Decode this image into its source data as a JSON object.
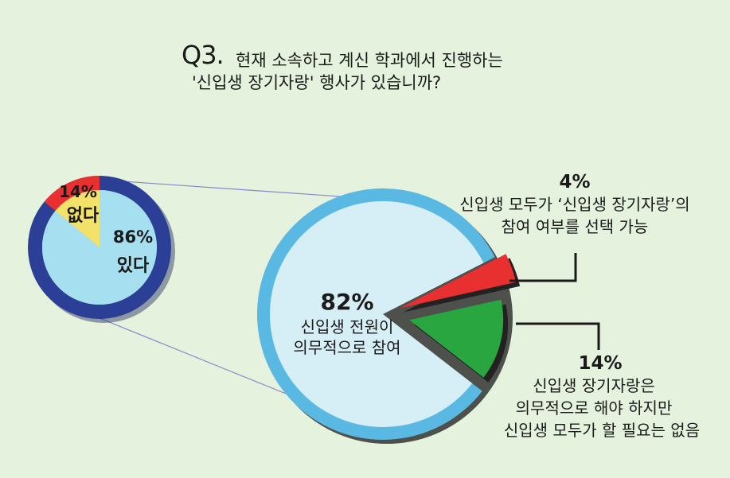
{
  "question": {
    "prefix": "Q3.",
    "line1": "현재 소속하고 계신 학과에서 진행하는",
    "line2": "'신입생 장기자랑' 행사가 있습니까?"
  },
  "chart_data": [
    {
      "type": "pie",
      "slices": [
        {
          "label": "있다",
          "value": 86,
          "value_text": "86%",
          "color": "#a6e0f0"
        },
        {
          "label": "없다",
          "value": 14,
          "value_text": "14%",
          "color": "#f2e26a"
        }
      ]
    },
    {
      "type": "pie",
      "slices": [
        {
          "label_lines": [
            "신입생 전원이",
            "의무적으로 참여"
          ],
          "value": 82,
          "value_text": "82%",
          "color": "#d6eff6"
        },
        {
          "label_lines": [
            "신입생 모두가 ‘신입생 장기자랑’의",
            "참여 여부를 선택 가능"
          ],
          "value": 4,
          "value_text": "4%",
          "color": "#e83030"
        },
        {
          "label_lines": [
            "신입생 장기자랑은",
            "의무적으로 해야 하지만",
            "신입생 모두가 할 필요는 없음"
          ],
          "value": 14,
          "value_text": "14%",
          "color": "#2aa640"
        }
      ]
    }
  ],
  "colors": {
    "background": "#e5f3de",
    "small_ring": "#2a3f95",
    "small_highlight": "#e83030",
    "big_ring": "#5ab9e3",
    "connector": "#8888cc"
  }
}
